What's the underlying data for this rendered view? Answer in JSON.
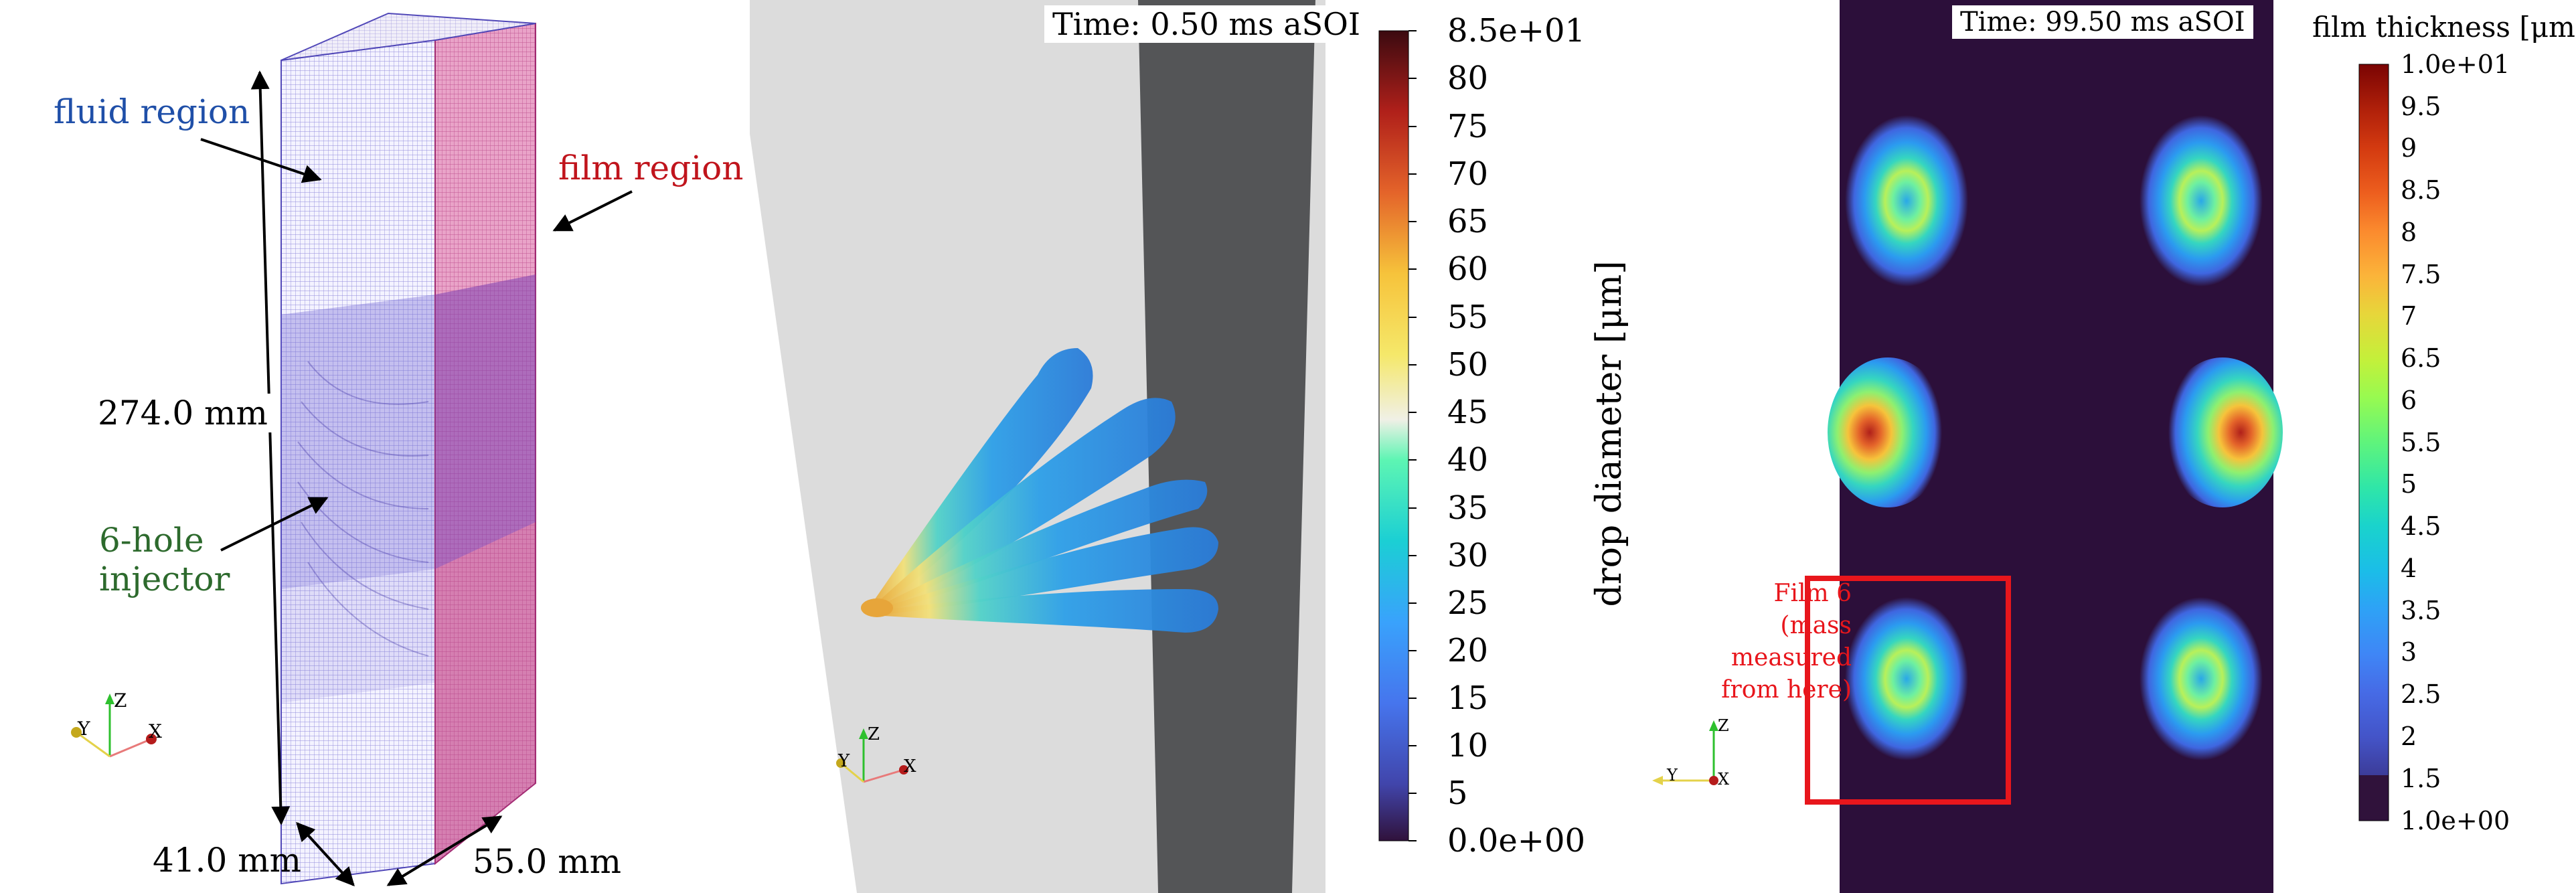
{
  "panel1": {
    "fluid_label": "fluid region",
    "film_label": "film region",
    "height_label": "274.0 mm",
    "injector_label_1": "6-hole",
    "injector_label_2": "injector",
    "depth_label": "41.0 mm",
    "width_label": "55.0 mm",
    "axes": {
      "z": "Z",
      "y": "Y",
      "x": "X"
    },
    "colors": {
      "fluid": "#1f4fa8",
      "film": "#c0141c",
      "injector": "#2d6a2d",
      "mesh": "#3b34b4",
      "film_mesh": "#b4306e"
    }
  },
  "panel2": {
    "time_label": "Time: 0.50 ms aSOI",
    "colorbar_title": "drop diameter [μm]",
    "colorbar_ticks": [
      "8.5e+01",
      "80",
      "75",
      "70",
      "65",
      "60",
      "55",
      "50",
      "45",
      "40",
      "35",
      "30",
      "25",
      "20",
      "15",
      "10",
      "5",
      "0.0e+00"
    ],
    "axes": {
      "z": "Z",
      "y": "Y",
      "x": "X"
    },
    "colormap": "turbo"
  },
  "panel3": {
    "time_label": "Time: 99.50 ms aSOI",
    "colorbar_title": "film thickness [μm]",
    "colorbar_ticks": [
      "1.0e+01",
      "9.5",
      "9",
      "8.5",
      "8",
      "7.5",
      "7",
      "6.5",
      "6",
      "5.5",
      "5",
      "4.5",
      "4",
      "3.5",
      "3",
      "2.5",
      "2",
      "1.5",
      "1.0e+00"
    ],
    "callout_line1": "Film 6",
    "callout_line2": "(mass",
    "callout_line3": "measured",
    "callout_line4": "from here)",
    "axes": {
      "z": "Z",
      "y": "Y",
      "x": "X"
    },
    "callout_color": "#e8161c",
    "background": "#2c0f3a"
  }
}
